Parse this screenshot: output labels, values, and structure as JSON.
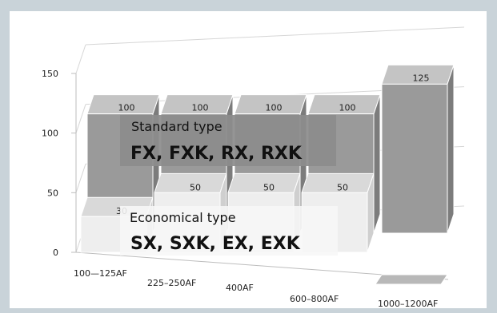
{
  "chart_data": {
    "type": "bar",
    "title": "",
    "xlabel": "",
    "ylabel": "",
    "ylim": [
      0,
      150
    ],
    "yticks": [
      0,
      50,
      100,
      150
    ],
    "grid": true,
    "categories": [
      "100—125AF",
      "225–250AF",
      "400AF",
      "600–800AF",
      "1000–1200AF"
    ],
    "series": [
      {
        "name": "Economical type",
        "values": [
          30,
          50,
          50,
          50,
          null
        ]
      },
      {
        "name": "Standard type",
        "values": [
          100,
          100,
          100,
          100,
          125
        ]
      }
    ],
    "annotations": [
      {
        "series": "Economical type",
        "caption": "Economical type",
        "models": "SX, SXK, EX, EXK"
      },
      {
        "series": "Standard type",
        "caption": "Standard type",
        "models": "FX, FXK, RX, RXK"
      }
    ],
    "colors": {
      "front_face": "#eeeeee",
      "front_top": "#d9d9d9",
      "back_face": "#9a9a9a",
      "back_top": "#c4c4c4",
      "back_side": "#7c7c7c",
      "label_box": "#8c8c8c",
      "axis": "#bdbdbd",
      "grid": "#d6d6d6",
      "background": "#c9d3d9",
      "panel": "#ffffff",
      "text": "#222222"
    }
  }
}
